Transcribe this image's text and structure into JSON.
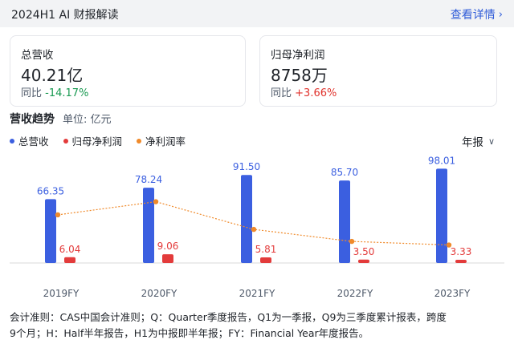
{
  "header": {
    "title": "2024H1 AI 财报解读",
    "detail_label": "查看详情",
    "detail_icon": "chevron-right-icon"
  },
  "cards": {
    "revenue": {
      "label": "总营收",
      "value": "40.21亿",
      "yoy_label": "同比",
      "yoy_value": "-14.17%",
      "yoy_color": "#1a9a52"
    },
    "profit": {
      "label": "归母净利润",
      "value": "8758万",
      "yoy_label": "同比",
      "yoy_value": "+3.66%",
      "yoy_color": "#e0322c"
    }
  },
  "section": {
    "title": "营收趋势",
    "unit": "单位: 亿元",
    "period_selector": "年报",
    "period_icon": "chevron-down-icon"
  },
  "legend": [
    {
      "label": "总营收",
      "color": "#3b5fe0"
    },
    {
      "label": "归母净利润",
      "color": "#e33b3b"
    },
    {
      "label": "净利润率",
      "color": "#f08a2a"
    }
  ],
  "chart_data": {
    "type": "bar",
    "categories": [
      "2019FY",
      "2020FY",
      "2021FY",
      "2022FY",
      "2023FY"
    ],
    "series": [
      {
        "name": "总营收",
        "kind": "bar",
        "color": "#3b5fe0",
        "values": [
          66.35,
          78.24,
          91.5,
          85.7,
          98.01
        ],
        "labels": [
          "66.35",
          "78.24",
          "91.50",
          "85.70",
          "98.01"
        ]
      },
      {
        "name": "归母净利润",
        "kind": "bar",
        "color": "#e33b3b",
        "values": [
          6.04,
          9.06,
          5.81,
          3.5,
          3.33
        ],
        "labels": [
          "6.04",
          "9.06",
          "5.81",
          "3.50",
          "3.33"
        ]
      },
      {
        "name": "净利润率",
        "kind": "line",
        "color": "#f08a2a",
        "values": [
          9.1,
          11.58,
          6.35,
          4.08,
          3.4
        ],
        "line_style": "dotted"
      }
    ],
    "ylim": [
      0,
      100
    ],
    "grid": false
  },
  "footnote": {
    "line1": "会计准则：CAS中国会计准则；Q：Quarter季度报告，Q1为一季报，Q9为三季度累计报表，跨度",
    "line2": "9个月；H：Half半年报告，H1为中报即半年报；FY：Financial Year年度报告。"
  }
}
